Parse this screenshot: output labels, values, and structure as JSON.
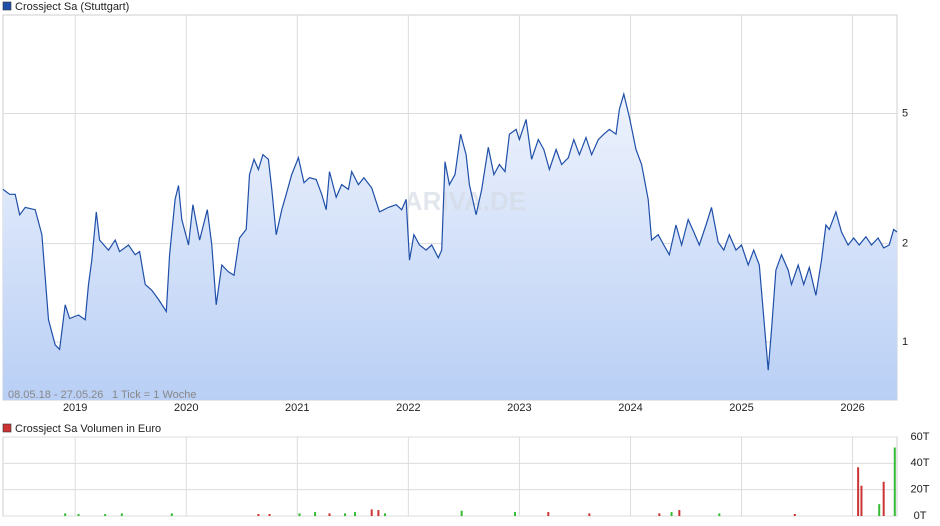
{
  "chart_data": [
    {
      "type": "line",
      "log_scale": true,
      "grid": true,
      "fill": true,
      "range_label": "08.05.18 - 27.05.26",
      "tick_note": "1 Tick = 1 Woche",
      "watermark": "ARIVA.DE",
      "xlim": [
        2018.35,
        2026.4
      ],
      "ylim": [
        0.665,
        10
      ],
      "xticks": [
        2019,
        2020,
        2021,
        2022,
        2023,
        2024,
        2025,
        2026
      ],
      "yticks": [
        1,
        2,
        5
      ],
      "x": [
        2018.35,
        2018.41,
        2018.46,
        2018.5,
        2018.55,
        2018.64,
        2018.7,
        2018.76,
        2018.82,
        2018.86,
        2018.91,
        2018.95,
        2019.03,
        2019.09,
        2019.12,
        2019.15,
        2019.19,
        2019.22,
        2019.3,
        2019.36,
        2019.4,
        2019.48,
        2019.54,
        2019.58,
        2019.63,
        2019.69,
        2019.75,
        2019.82,
        2019.85,
        2019.9,
        2019.93,
        2019.96,
        2020.02,
        2020.06,
        2020.12,
        2020.19,
        2020.23,
        2020.27,
        2020.32,
        2020.38,
        2020.43,
        2020.48,
        2020.54,
        2020.57,
        2020.61,
        2020.65,
        2020.69,
        2020.74,
        2020.77,
        2020.81,
        2020.86,
        2020.9,
        2020.95,
        2021.01,
        2021.06,
        2021.11,
        2021.17,
        2021.22,
        2021.26,
        2021.29,
        2021.35,
        2021.4,
        2021.46,
        2021.49,
        2021.55,
        2021.6,
        2021.67,
        2021.74,
        2021.82,
        2021.89,
        2021.94,
        2021.98,
        2022.01,
        2022.05,
        2022.1,
        2022.16,
        2022.21,
        2022.27,
        2022.3,
        2022.33,
        2022.37,
        2022.42,
        2022.47,
        2022.52,
        2022.55,
        2022.61,
        2022.66,
        2022.72,
        2022.77,
        2022.82,
        2022.87,
        2022.91,
        2022.97,
        2023.0,
        2023.06,
        2023.11,
        2023.17,
        2023.22,
        2023.27,
        2023.33,
        2023.38,
        2023.44,
        2023.49,
        2023.54,
        2023.6,
        2023.65,
        2023.71,
        2023.76,
        2023.81,
        2023.87,
        2023.9,
        2023.94,
        2023.99,
        2024.05,
        2024.1,
        2024.16,
        2024.19,
        2024.25,
        2024.3,
        2024.35,
        2024.41,
        2024.46,
        2024.52,
        2024.57,
        2024.62,
        2024.68,
        2024.73,
        2024.79,
        2024.84,
        2024.89,
        2024.95,
        2025.0,
        2025.06,
        2025.11,
        2025.16,
        2025.21,
        2025.24,
        2025.27,
        2025.31,
        2025.36,
        2025.42,
        2025.45,
        2025.51,
        2025.56,
        2025.61,
        2025.67,
        2025.72,
        2025.76,
        2025.79,
        2025.85,
        2025.9,
        2025.96,
        2026.01,
        2026.06,
        2026.12,
        2026.17,
        2026.23,
        2026.28,
        2026.33,
        2026.37,
        2026.4
      ],
      "series": [
        {
          "name": "Crossject Sa (Stuttgart)",
          "color": "#1f4fa8",
          "values": [
            2.93,
            2.83,
            2.83,
            2.45,
            2.58,
            2.54,
            2.13,
            1.17,
            0.98,
            0.95,
            1.3,
            1.18,
            1.21,
            1.17,
            1.5,
            1.78,
            2.5,
            2.05,
            1.91,
            2.05,
            1.89,
            1.98,
            1.85,
            1.89,
            1.5,
            1.44,
            1.35,
            1.24,
            1.85,
            2.73,
            3.01,
            2.37,
            1.98,
            2.63,
            2.05,
            2.54,
            1.98,
            1.3,
            1.72,
            1.64,
            1.6,
            2.08,
            2.21,
            3.25,
            3.62,
            3.37,
            3.74,
            3.62,
            2.93,
            2.13,
            2.54,
            2.83,
            3.25,
            3.66,
            3.07,
            3.18,
            3.14,
            2.83,
            2.54,
            3.32,
            2.77,
            3.03,
            2.93,
            3.32,
            3.03,
            3.18,
            2.96,
            2.5,
            2.58,
            2.63,
            2.54,
            2.73,
            1.78,
            2.13,
            1.98,
            1.91,
            1.98,
            1.81,
            1.91,
            3.56,
            3.03,
            3.25,
            4.32,
            3.74,
            3.03,
            2.45,
            2.93,
            3.94,
            3.25,
            3.49,
            3.32,
            4.32,
            4.47,
            4.16,
            4.79,
            3.62,
            4.16,
            3.88,
            3.37,
            3.88,
            3.49,
            3.66,
            4.16,
            3.74,
            4.22,
            3.74,
            4.16,
            4.32,
            4.47,
            4.32,
            5.15,
            5.73,
            4.87,
            3.88,
            3.49,
            2.73,
            2.05,
            2.13,
            1.98,
            1.85,
            2.28,
            1.98,
            2.37,
            2.17,
            1.98,
            2.28,
            2.58,
            2.02,
            1.91,
            2.13,
            1.91,
            1.98,
            1.72,
            1.91,
            1.72,
            1.09,
            0.82,
            1.09,
            1.66,
            1.85,
            1.66,
            1.5,
            1.72,
            1.5,
            1.69,
            1.39,
            1.78,
            2.28,
            2.21,
            2.5,
            2.17,
            1.98,
            2.08,
            1.98,
            2.1,
            1.98,
            2.08,
            1.94,
            1.98,
            2.21,
            2.17
          ]
        }
      ]
    },
    {
      "type": "bar",
      "grid": true,
      "xlim": [
        2018.35,
        2026.4
      ],
      "ylim": [
        0,
        60
      ],
      "xticks": [
        2019,
        2020,
        2021,
        2022,
        2023,
        2024,
        2025,
        2026
      ],
      "yticks": [
        {
          "value": 0,
          "label": "0T"
        },
        {
          "value": 20,
          "label": "20T"
        },
        {
          "value": 40,
          "label": "40T"
        },
        {
          "value": 60,
          "label": "60T"
        }
      ],
      "x": [
        2018.91,
        2019.03,
        2019.27,
        2019.42,
        2019.87,
        2020.65,
        2020.75,
        2021.02,
        2021.16,
        2021.29,
        2021.43,
        2021.52,
        2021.67,
        2021.73,
        2021.79,
        2022.48,
        2022.96,
        2023.26,
        2023.63,
        2024.26,
        2024.37,
        2024.44,
        2024.8,
        2025.48,
        2026.05,
        2026.08,
        2026.24,
        2026.28,
        2026.38
      ],
      "bar_colors": [
        "#33bb33",
        "#33bb33",
        "#33bb33",
        "#33bb33",
        "#33bb33",
        "#cc3333",
        "#cc3333",
        "#33bb33",
        "#33bb33",
        "#cc3333",
        "#33bb33",
        "#33bb33",
        "#cc3333",
        "#cc3333",
        "#33bb33",
        "#33bb33",
        "#33bb33",
        "#cc3333",
        "#cc3333",
        "#cc3333",
        "#33bb33",
        "#cc3333",
        "#33bb33",
        "#cc3333",
        "#cc3333",
        "#cc3333",
        "#33bb33",
        "#cc3333",
        "#33bb33"
      ],
      "series": [
        {
          "name": "Crossject Sa Volumen in Euro",
          "color": "#cc3333",
          "values": [
            2,
            1.5,
            1.5,
            2,
            2,
            1.5,
            1.5,
            2,
            3,
            2,
            2,
            3,
            5,
            4.5,
            2,
            4,
            3,
            3,
            2,
            2,
            3,
            4.5,
            2,
            1.5,
            37,
            23,
            9,
            26,
            52
          ]
        }
      ]
    }
  ]
}
